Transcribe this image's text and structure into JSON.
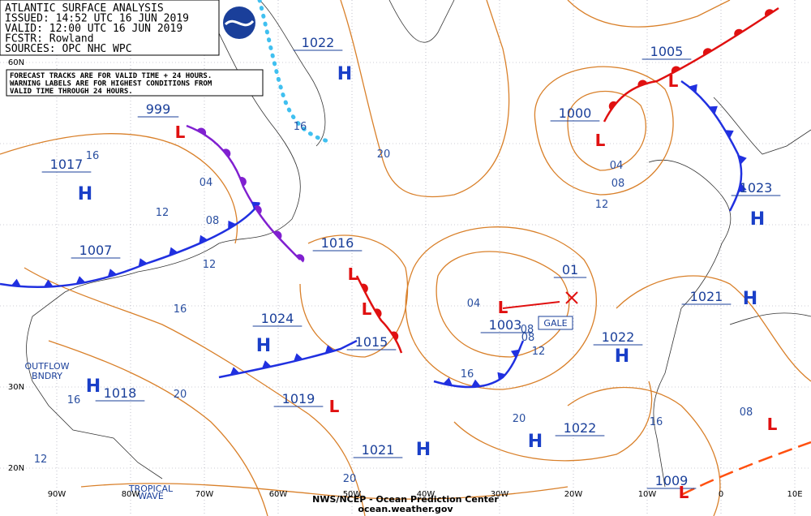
{
  "header": {
    "lines": [
      "ATLANTIC SURFACE ANALYSIS",
      "ISSUED: 14:52 UTC 16 JUN 2019",
      "VALID:  12:00 UTC 16 JUN 2019",
      "FCSTR:  Rowland",
      "SOURCES: OPC NHC WPC"
    ]
  },
  "notice": [
    "FORECAST TRACKS ARE FOR VALID TIME + 24 HOURS.",
    "WARNING LABELS ARE FOR HIGHEST CONDITIONS FROM",
    "VALID TIME THROUGH 24 HOURS."
  ],
  "pressure_labels": [
    "1022",
    "999",
    "1017",
    "1007",
    "1016",
    "1024",
    "1015",
    "1019",
    "1018",
    "1021",
    "1003",
    "01",
    "1000",
    "1005",
    "1023",
    "1022",
    "1021",
    "1022",
    "1009"
  ],
  "highs": [
    "H",
    "H",
    "H",
    "H",
    "H",
    "H",
    "H",
    "H",
    "H"
  ],
  "lows": [
    "L",
    "L",
    "L",
    "L",
    "L",
    "L",
    "L",
    "L",
    "L"
  ],
  "isobar_labels": [
    "16",
    "04",
    "12",
    "08",
    "12",
    "16",
    "20",
    "16",
    "12",
    "04",
    "08",
    "16",
    "20",
    "08",
    "12",
    "16",
    "08",
    "12",
    "04",
    "20",
    "20",
    "16",
    "08"
  ],
  "annotations": [
    "OUTFLOW",
    "BNDRY",
    "GALE",
    "TROPICAL",
    "WAVE"
  ],
  "lat_labels": [
    "60N",
    "30N",
    "20N"
  ],
  "lon_labels": [
    "90W",
    "80W",
    "70W",
    "60W",
    "50W",
    "40W",
    "30W",
    "20W",
    "10W",
    "0",
    "10E"
  ],
  "footer": [
    "NWS/NCEP - Ocean Prediction Center",
    "ocean.weather.gov"
  ]
}
